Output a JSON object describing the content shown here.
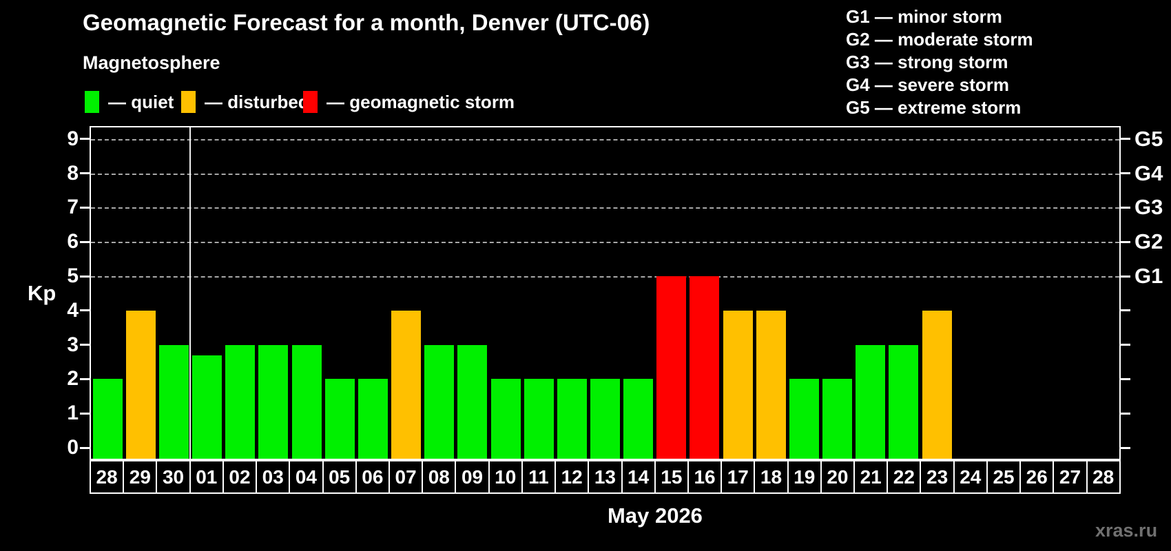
{
  "header": {
    "title": "Geomagnetic Forecast for a month, Denver (UTC-06)",
    "subtitle": "Magnetosphere",
    "legend": [
      {
        "name": "quiet",
        "label": "— quiet",
        "color": "#00f000"
      },
      {
        "name": "disturbed",
        "label": "— disturbed",
        "color": "#ffc000"
      },
      {
        "name": "storm",
        "label": "— geomagnetic storm",
        "color": "#ff0000"
      }
    ],
    "g_scale_legend": [
      "G1 — minor storm",
      "G2 — moderate storm",
      "G3 — strong storm",
      "G4 — severe storm",
      "G5 — extreme storm"
    ]
  },
  "chart_data": {
    "type": "bar",
    "title": "Geomagnetic Forecast for a month, Denver (UTC-06)",
    "subtitle": "Magnetosphere",
    "xlabel": "May 2026",
    "ylabel": "Kp",
    "ylim": [
      -0.35,
      9.4
    ],
    "yticks": [
      0,
      1,
      2,
      3,
      4,
      5,
      6,
      7,
      8,
      9
    ],
    "gridlines_at": [
      5,
      6,
      7,
      8,
      9
    ],
    "grid_style": "dashed",
    "legend_position": "top-left",
    "right_axis_labels": [
      {
        "kp": 5,
        "label": "G1"
      },
      {
        "kp": 6,
        "label": "G2"
      },
      {
        "kp": 7,
        "label": "G3"
      },
      {
        "kp": 8,
        "label": "G4"
      },
      {
        "kp": 9,
        "label": "G5"
      }
    ],
    "month_boundary_after_index": 2,
    "categories": [
      "28",
      "29",
      "30",
      "01",
      "02",
      "03",
      "04",
      "05",
      "06",
      "07",
      "08",
      "09",
      "10",
      "11",
      "12",
      "13",
      "14",
      "15",
      "16",
      "17",
      "18",
      "19",
      "20",
      "21",
      "22",
      "23",
      "24",
      "25",
      "26",
      "27",
      "28"
    ],
    "values": [
      2,
      4,
      3,
      2.7,
      3,
      3,
      3,
      2,
      2,
      4,
      3,
      3,
      2,
      2,
      2,
      2,
      2,
      5,
      5,
      4,
      4,
      2,
      2,
      3,
      3,
      4,
      null,
      null,
      null,
      null,
      null
    ],
    "conditions": [
      "quiet",
      "disturbed",
      "quiet",
      "quiet",
      "quiet",
      "quiet",
      "quiet",
      "quiet",
      "quiet",
      "disturbed",
      "quiet",
      "quiet",
      "quiet",
      "quiet",
      "quiet",
      "quiet",
      "quiet",
      "storm",
      "storm",
      "disturbed",
      "disturbed",
      "quiet",
      "quiet",
      "quiet",
      "quiet",
      "disturbed",
      null,
      null,
      null,
      null,
      null
    ],
    "colors": {
      "quiet": "#00f000",
      "disturbed": "#ffc000",
      "storm": "#ff0000"
    }
  },
  "footer": {
    "watermark": "xras.ru"
  }
}
